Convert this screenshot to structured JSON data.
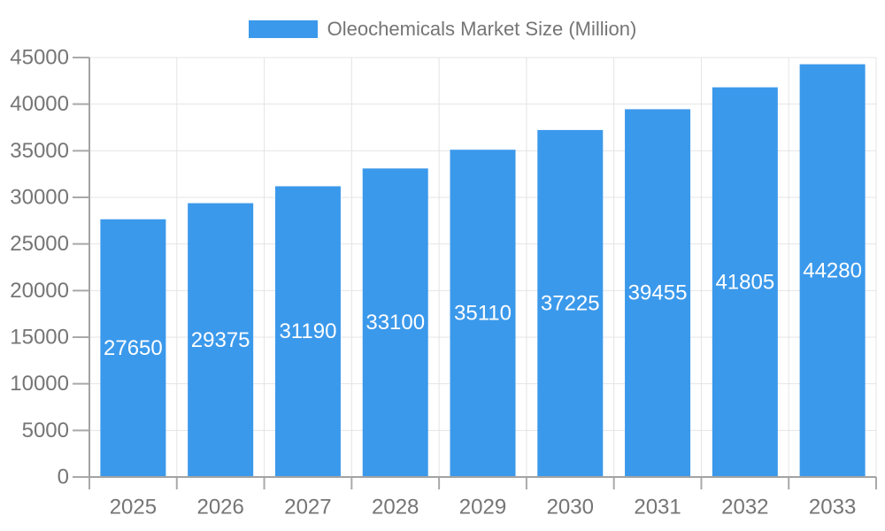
{
  "legend": {
    "label": "Oleochemicals Market Size (Million)"
  },
  "colors": {
    "bar": "#3B99EB",
    "axis_text": "#757575",
    "legend_text": "#757575",
    "axis_line": "#a3a3a3",
    "tick_line": "#a9a9a9",
    "grid_line": "#e4e4e4",
    "value_label": "#ffffff",
    "background": "#ffffff"
  },
  "chart_data": {
    "type": "bar",
    "title": "Oleochemicals Market Size (Million)",
    "categories": [
      "2025",
      "2026",
      "2027",
      "2028",
      "2029",
      "2030",
      "2031",
      "2032",
      "2033"
    ],
    "series": [
      {
        "name": "Oleochemicals Market Size (Million)",
        "values": [
          27650,
          29375,
          31190,
          33100,
          35110,
          37225,
          39455,
          41805,
          44280
        ]
      }
    ],
    "xlabel": "",
    "ylabel": "",
    "ylim": [
      0,
      45000
    ],
    "ytick_step": 5000,
    "grid": true,
    "legend_position": "top-center",
    "value_label_position": "inside-center"
  }
}
